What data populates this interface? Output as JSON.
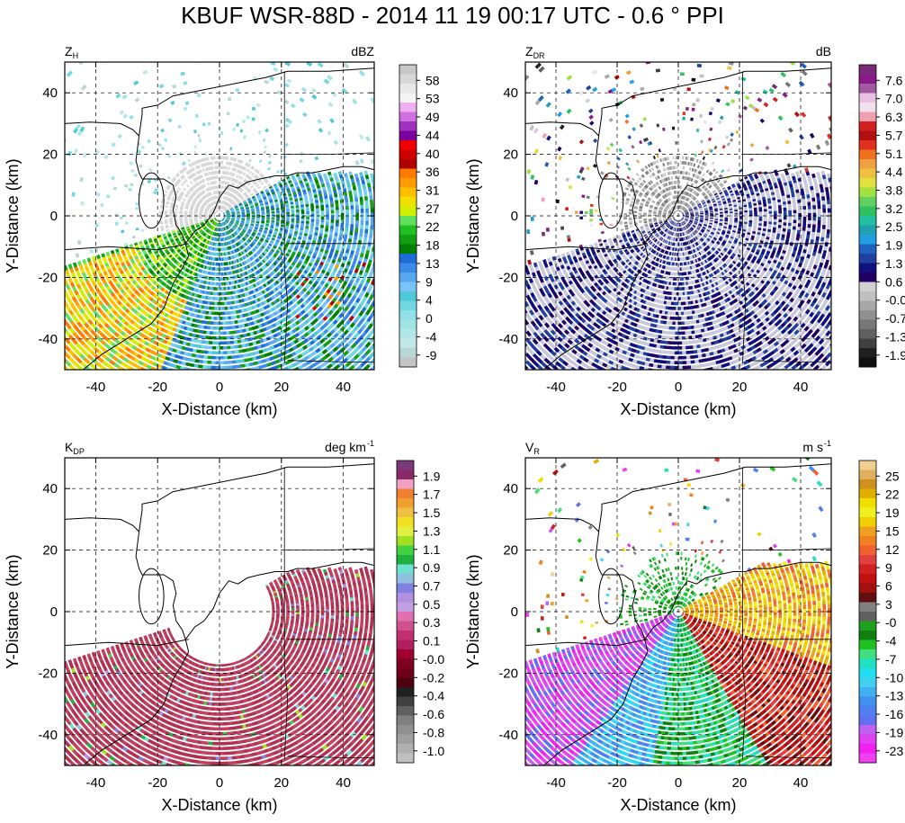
{
  "title": "KBUF WSR-88D - 2014 11 19 00:17 UTC - 0.6 ° PPI",
  "chart_data": [
    {
      "type": "heatmap",
      "variable": "Z",
      "variable_sub": "H",
      "units": "dBZ",
      "units_sup": "",
      "xlabel": "X-Distance (km)",
      "ylabel": "Y-Distance (km)",
      "xlim": [
        -50,
        50
      ],
      "ylim": [
        -50,
        50
      ],
      "xticks": [
        -40,
        -20,
        0,
        20,
        40
      ],
      "yticks": [
        -40,
        -20,
        0,
        20,
        40
      ],
      "grid": true,
      "colorbar_labels": [
        "58",
        "53",
        "49",
        "44",
        "40",
        "36",
        "31",
        "27",
        "22",
        "18",
        "13",
        "9",
        "4",
        "0",
        "-4",
        "-9"
      ],
      "colorbar_colors": [
        "#c8c8c8",
        "#d8d8d8",
        "#e8e8e8",
        "#f4f4f4",
        "#f0b0f0",
        "#d070e0",
        "#a030c0",
        "#7a00a0",
        "#f00000",
        "#d00000",
        "#b00000",
        "#ff7a00",
        "#ff9a00",
        "#ffc000",
        "#f0e000",
        "#d0f000",
        "#60e060",
        "#20c020",
        "#10a010",
        "#008000",
        "#1e6cd8",
        "#3a8ce8",
        "#58a8f0",
        "#78c4f8",
        "#50c8d8",
        "#70d8e0",
        "#90e0e8",
        "#a0e4e4",
        "#b0e8e8",
        "#c0e8e8",
        "#b8d8d8",
        "#c4c4c4"
      ]
    },
    {
      "type": "heatmap",
      "variable": "Z",
      "variable_sub": "DR",
      "units": "dB",
      "units_sup": "",
      "xlabel": "X-Distance (km)",
      "ylabel": "Y-Distance (km)",
      "xlim": [
        -50,
        50
      ],
      "ylim": [
        -50,
        50
      ],
      "xticks": [
        -40,
        -20,
        0,
        20,
        40
      ],
      "yticks": [
        -40,
        -20,
        0,
        20,
        40
      ],
      "grid": true,
      "colorbar_labels": [
        "7.6",
        "7.0",
        "6.3",
        "5.7",
        "5.1",
        "4.4",
        "3.8",
        "3.2",
        "2.5",
        "1.9",
        "1.3",
        "0.6",
        "-0.0",
        "-0.7",
        "-1.3",
        "-1.9"
      ],
      "colorbar_colors": [
        "#7a2a7a",
        "#8a1a8a",
        "#a05aa0",
        "#e8c0e0",
        "#f0e0f0",
        "#f0a0b0",
        "#d02020",
        "#b01010",
        "#e03020",
        "#f07020",
        "#f0a040",
        "#f0c040",
        "#e0e040",
        "#a0e040",
        "#60d060",
        "#30c060",
        "#20c0a0",
        "#20a0b0",
        "#20a0e0",
        "#2060c0",
        "#2040a0",
        "#101080",
        "#200060",
        "#d0d0d0",
        "#c0c0c0",
        "#a8a8a8",
        "#909090",
        "#787878",
        "#606060",
        "#404040",
        "#202020",
        "#101010"
      ]
    },
    {
      "type": "heatmap",
      "variable": "K",
      "variable_sub": "DP",
      "units": "deg km",
      "units_sup": "-1",
      "xlabel": "X-Distance (km)",
      "ylabel": "Y-Distance (km)",
      "xlim": [
        -50,
        50
      ],
      "ylim": [
        -50,
        50
      ],
      "xticks": [
        -40,
        -20,
        0,
        20,
        40
      ],
      "yticks": [
        -40,
        -20,
        0,
        20,
        40
      ],
      "grid": true,
      "colorbar_labels": [
        "1.9",
        "1.7",
        "1.5",
        "1.3",
        "1.1",
        "0.9",
        "0.7",
        "0.5",
        "0.3",
        "0.1",
        "-0.0",
        "-0.2",
        "-0.4",
        "-0.6",
        "-0.8",
        "-1.0"
      ],
      "colorbar_colors": [
        "#7a3a7a",
        "#8a2a6a",
        "#f0a0c0",
        "#f08030",
        "#f0a030",
        "#f0c040",
        "#f0e020",
        "#e0f040",
        "#a0e020",
        "#40d040",
        "#20b040",
        "#70e0d0",
        "#90c0e0",
        "#8080e0",
        "#b090e0",
        "#c0a0e0",
        "#e070b0",
        "#d05090",
        "#c03070",
        "#b02060",
        "#a00030",
        "#800020",
        "#700018",
        "#500010",
        "#202020",
        "#404040",
        "#606060",
        "#808080",
        "#909090",
        "#a0a0a0",
        "#b0b0b0",
        "#c0c0c0"
      ]
    },
    {
      "type": "heatmap",
      "variable": "V",
      "variable_sub": "R",
      "units": "m s",
      "units_sup": "-1",
      "xlabel": "X-Distance (km)",
      "ylabel": "Y-Distance (km)",
      "xlim": [
        -50,
        50
      ],
      "ylim": [
        -50,
        50
      ],
      "xticks": [
        -40,
        -20,
        0,
        20,
        40
      ],
      "yticks": [
        -40,
        -20,
        0,
        20,
        40
      ],
      "grid": true,
      "colorbar_labels": [
        "25",
        "22",
        "19",
        "15",
        "12",
        "9",
        "6",
        "3",
        "-0",
        "-4",
        "-7",
        "-10",
        "-13",
        "-16",
        "-19",
        "-23"
      ],
      "colorbar_colors": [
        "#f0d090",
        "#e0b060",
        "#d09020",
        "#e0b000",
        "#f0e000",
        "#f0f020",
        "#f0d000",
        "#f0a020",
        "#f08020",
        "#f06030",
        "#e04040",
        "#d02020",
        "#c01010",
        "#a01010",
        "#601010",
        "#808080",
        "#606060",
        "#20a020",
        "#108010",
        "#20c020",
        "#40e080",
        "#20e0c0",
        "#20e0f0",
        "#40d0f0",
        "#40b0f0",
        "#4090f0",
        "#5080f0",
        "#6070f0",
        "#c060f0",
        "#e040f0",
        "#f020f0",
        "#f040f0"
      ]
    }
  ]
}
